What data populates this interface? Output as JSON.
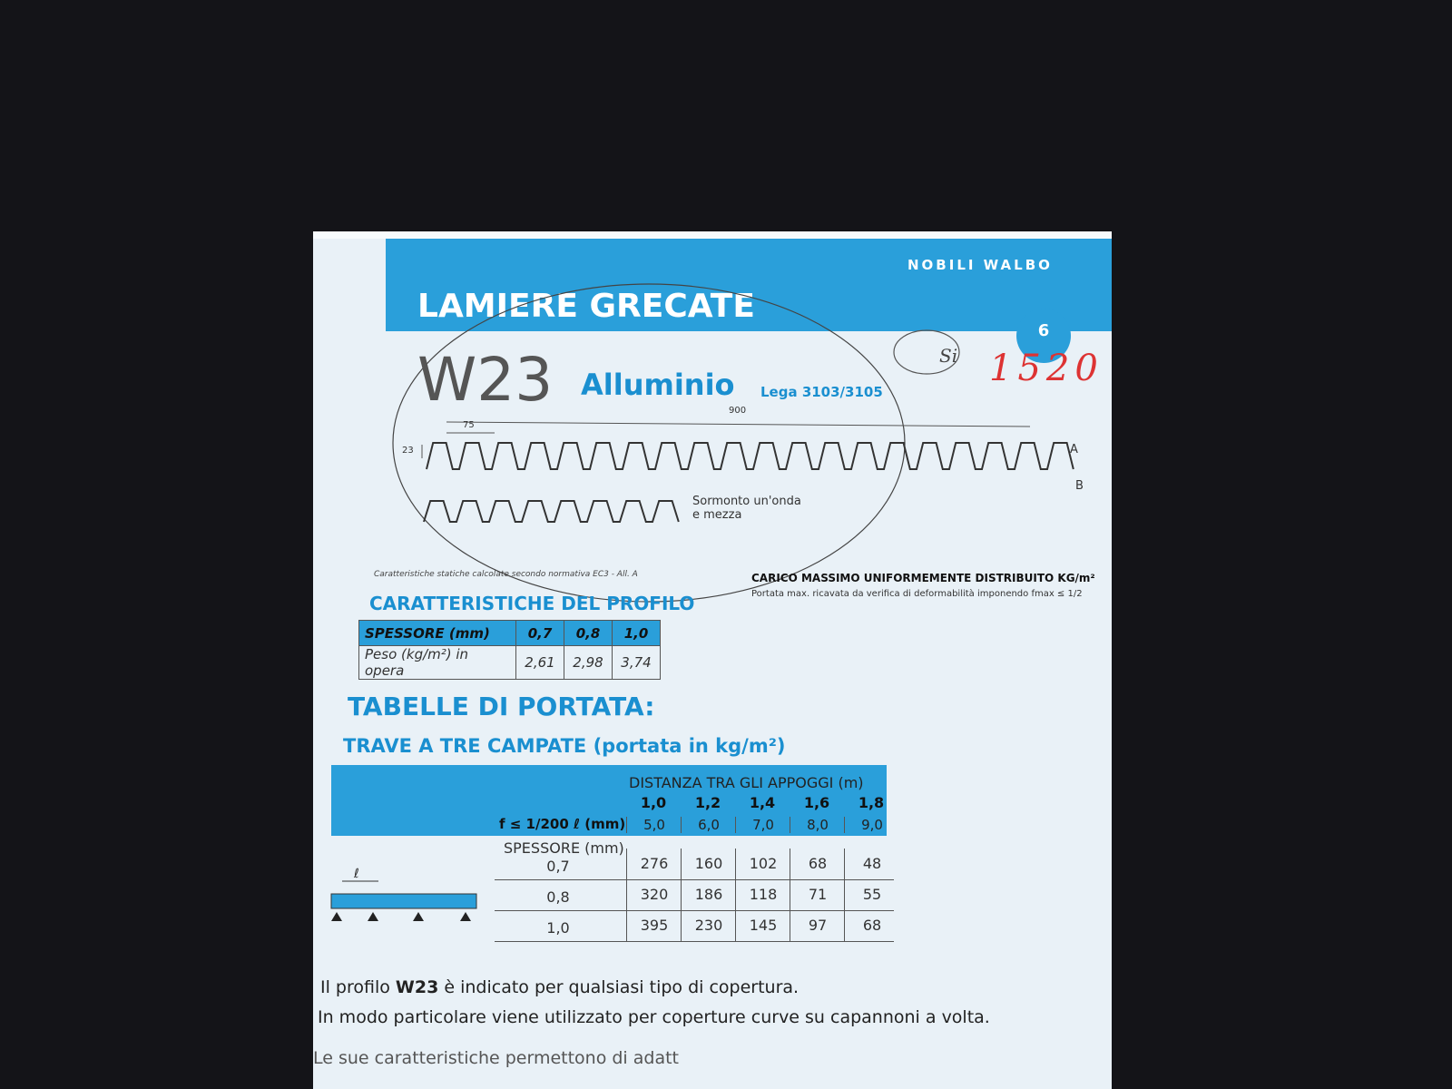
{
  "header": {
    "brand": "NOBILI WALBO",
    "title": "LAMIERE GRECATE",
    "page_number": "6"
  },
  "handwriting": {
    "circled": "Si",
    "number": "1520"
  },
  "product": {
    "code": "W23",
    "material": "Alluminio",
    "alloy": "Lega 3103/3105"
  },
  "drawing": {
    "total_width": "900",
    "pitch": "75",
    "height": "23",
    "label_a": "A",
    "label_b": "B",
    "overlap_line1": "Sormonto un'onda",
    "overlap_line2": "e mezza"
  },
  "profile": {
    "note": "Caratteristiche statiche calcolate secondo normativa EC3 - All. A",
    "title": "CARATTERISTICHE DEL PROFILO",
    "table": {
      "header": [
        "SPESSORE (mm)",
        "0,7",
        "0,8",
        "1,0"
      ],
      "rows": [
        [
          "Peso (kg/m²) in opera",
          "2,61",
          "2,98",
          "3,74"
        ]
      ]
    }
  },
  "load": {
    "title": "CARICO MASSIMO UNIFORMEMENTE DISTRIBUITO KG/m²",
    "subtitle": "Portata max. ricavata da verifica di deformabilità imponendo fmax ≤ 1/2"
  },
  "span_tables": {
    "title": "TABELLE DI PORTATA:",
    "subtitle": "TRAVE A TRE CAMPATE (portata in kg/m²)",
    "table": {
      "distance_header": "DISTANZA TRA GLI APPOGGI (m)",
      "distances": [
        "1,0",
        "1,2",
        "1,4",
        "1,6",
        "1,8"
      ],
      "deflection_label": "f ≤ 1/200 ℓ (mm)",
      "deflections": [
        "5,0",
        "6,0",
        "7,0",
        "8,0",
        "9,0"
      ],
      "thickness_label": "SPESSORE (mm)",
      "span_symbol": "ℓ",
      "rows": [
        {
          "thickness": "0,7",
          "values": [
            "276",
            "160",
            "102",
            "68",
            "48"
          ]
        },
        {
          "thickness": "0,8",
          "values": [
            "320",
            "186",
            "118",
            "71",
            "55"
          ]
        },
        {
          "thickness": "1,0",
          "values": [
            "395",
            "230",
            "145",
            "97",
            "68"
          ]
        }
      ]
    }
  },
  "footer": {
    "line1": [
      "Il profilo ",
      "W23",
      " è indicato per qualsiasi tipo di copertura."
    ],
    "line2": "In modo particolare viene utilizzato per coperture curve su capannoni a volta.",
    "line3": "Le sue caratteristiche permettono di adatt"
  }
}
